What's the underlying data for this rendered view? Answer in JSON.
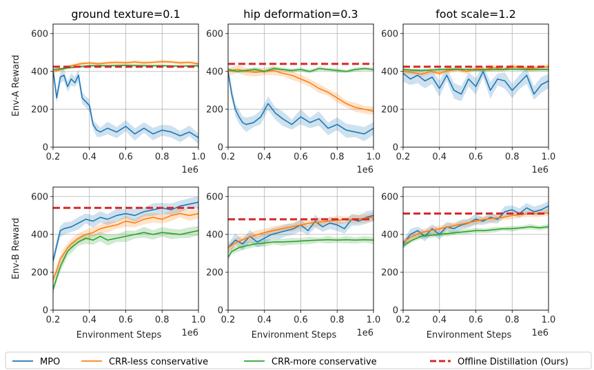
{
  "colors": {
    "mpo": "#1f77b4",
    "crr_less": "#ff7f0e",
    "crr_more": "#2ca02c",
    "distill": "#d62728"
  },
  "legend": {
    "items": [
      {
        "key": "mpo",
        "label": "MPO",
        "style": "solid"
      },
      {
        "key": "crr_less",
        "label": "CRR-less conservative",
        "style": "solid"
      },
      {
        "key": "crr_more",
        "label": "CRR-more conservative",
        "style": "solid"
      },
      {
        "key": "distill",
        "label": "Offline Distillation (Ours)",
        "style": "dashed"
      }
    ]
  },
  "chart_data": [
    {
      "type": "line",
      "title": "ground texture=0.1",
      "ylabel": "Env-A Reward",
      "xlabel": "",
      "x_offset_label": "1e6",
      "xlim": [
        0.2,
        1.0
      ],
      "ylim": [
        0,
        650
      ],
      "xticks": [
        "0.2",
        "0.4",
        "0.6",
        "0.8",
        "1.0"
      ],
      "yticks": [
        0,
        200,
        400,
        600
      ],
      "grid": true,
      "series": [
        {
          "name": "MPO",
          "color_key": "mpo",
          "band": 35,
          "x": [
            0.2,
            0.22,
            0.24,
            0.26,
            0.28,
            0.3,
            0.32,
            0.34,
            0.36,
            0.38,
            0.4,
            0.42,
            0.44,
            0.46,
            0.5,
            0.55,
            0.6,
            0.65,
            0.7,
            0.75,
            0.8,
            0.85,
            0.9,
            0.95,
            1.0
          ],
          "y": [
            410,
            260,
            370,
            380,
            320,
            360,
            340,
            380,
            260,
            240,
            220,
            120,
            90,
            80,
            100,
            80,
            110,
            70,
            100,
            70,
            90,
            80,
            60,
            80,
            50
          ]
        },
        {
          "name": "CRR-less conservative",
          "color_key": "crr_less",
          "band": 10,
          "x": [
            0.2,
            0.25,
            0.3,
            0.35,
            0.4,
            0.45,
            0.5,
            0.55,
            0.6,
            0.65,
            0.7,
            0.75,
            0.8,
            0.85,
            0.9,
            0.95,
            1.0
          ],
          "y": [
            400,
            410,
            430,
            440,
            445,
            440,
            445,
            448,
            445,
            450,
            445,
            448,
            452,
            450,
            445,
            448,
            440
          ]
        },
        {
          "name": "CRR-more conservative",
          "color_key": "crr_more",
          "band": 8,
          "x": [
            0.2,
            0.3,
            0.4,
            0.5,
            0.6,
            0.7,
            0.8,
            0.9,
            1.0
          ],
          "y": [
            410,
            420,
            430,
            430,
            432,
            430,
            430,
            428,
            430
          ]
        },
        {
          "name": "Offline Distillation (Ours)",
          "color_key": "distill",
          "style": "dashed",
          "x": [
            0.2,
            1.0
          ],
          "y": [
            425,
            425
          ]
        }
      ]
    },
    {
      "type": "line",
      "title": "hip deformation=0.3",
      "ylabel": "",
      "xlabel": "",
      "x_offset_label": "1e6",
      "xlim": [
        0.2,
        1.0
      ],
      "ylim": [
        0,
        650
      ],
      "xticks": [
        "0.2",
        "0.4",
        "0.6",
        "0.8",
        "1.0"
      ],
      "yticks": [
        0,
        200,
        400,
        600
      ],
      "grid": true,
      "series": [
        {
          "name": "MPO",
          "color_key": "mpo",
          "band": 40,
          "x": [
            0.2,
            0.22,
            0.24,
            0.26,
            0.28,
            0.3,
            0.34,
            0.38,
            0.42,
            0.46,
            0.5,
            0.55,
            0.6,
            0.65,
            0.7,
            0.75,
            0.8,
            0.85,
            0.9,
            0.95,
            1.0
          ],
          "y": [
            400,
            280,
            200,
            160,
            130,
            120,
            130,
            160,
            230,
            180,
            150,
            120,
            160,
            130,
            150,
            100,
            120,
            90,
            80,
            70,
            100
          ]
        },
        {
          "name": "CRR-less conservative",
          "color_key": "crr_less",
          "band": 25,
          "x": [
            0.2,
            0.25,
            0.3,
            0.35,
            0.4,
            0.45,
            0.5,
            0.55,
            0.6,
            0.65,
            0.7,
            0.75,
            0.8,
            0.85,
            0.9,
            0.95,
            1.0
          ],
          "y": [
            400,
            410,
            400,
            395,
            400,
            405,
            390,
            380,
            360,
            340,
            310,
            290,
            260,
            230,
            210,
            200,
            190
          ]
        },
        {
          "name": "CRR-more conservative",
          "color_key": "crr_more",
          "band": 12,
          "x": [
            0.2,
            0.25,
            0.3,
            0.35,
            0.4,
            0.45,
            0.5,
            0.55,
            0.6,
            0.65,
            0.7,
            0.75,
            0.8,
            0.85,
            0.9,
            0.95,
            1.0
          ],
          "y": [
            410,
            400,
            405,
            410,
            400,
            415,
            410,
            405,
            410,
            400,
            415,
            410,
            405,
            400,
            410,
            415,
            410
          ]
        },
        {
          "name": "Offline Distillation (Ours)",
          "color_key": "distill",
          "style": "dashed",
          "x": [
            0.2,
            1.0
          ],
          "y": [
            440,
            440
          ]
        }
      ]
    },
    {
      "type": "line",
      "title": "foot scale=1.2",
      "ylabel": "",
      "xlabel": "",
      "x_offset_label": "1e6",
      "xlim": [
        0.2,
        1.0
      ],
      "ylim": [
        0,
        650
      ],
      "xticks": [
        "0.2",
        "0.4",
        "0.6",
        "0.8",
        "1.0"
      ],
      "yticks": [
        0,
        200,
        400,
        600
      ],
      "grid": true,
      "series": [
        {
          "name": "MPO",
          "color_key": "mpo",
          "band": 45,
          "x": [
            0.2,
            0.24,
            0.28,
            0.32,
            0.36,
            0.4,
            0.44,
            0.48,
            0.52,
            0.56,
            0.6,
            0.64,
            0.68,
            0.72,
            0.76,
            0.8,
            0.84,
            0.88,
            0.92,
            0.96,
            1.0
          ],
          "y": [
            390,
            360,
            380,
            350,
            370,
            310,
            380,
            300,
            280,
            360,
            320,
            400,
            300,
            360,
            350,
            300,
            340,
            380,
            280,
            330,
            350
          ]
        },
        {
          "name": "CRR-less conservative",
          "color_key": "crr_less",
          "band": 15,
          "x": [
            0.2,
            0.25,
            0.3,
            0.35,
            0.4,
            0.45,
            0.5,
            0.55,
            0.6,
            0.65,
            0.7,
            0.75,
            0.8,
            0.85,
            0.9,
            0.95,
            1.0
          ],
          "y": [
            400,
            395,
            385,
            400,
            390,
            405,
            410,
            400,
            415,
            410,
            420,
            410,
            425,
            420,
            415,
            420,
            425
          ]
        },
        {
          "name": "CRR-more conservative",
          "color_key": "crr_more",
          "band": 10,
          "x": [
            0.2,
            0.3,
            0.4,
            0.5,
            0.6,
            0.7,
            0.8,
            0.9,
            1.0
          ],
          "y": [
            410,
            405,
            410,
            412,
            408,
            410,
            412,
            410,
            410
          ]
        },
        {
          "name": "Offline Distillation (Ours)",
          "color_key": "distill",
          "style": "dashed",
          "x": [
            0.2,
            1.0
          ],
          "y": [
            425,
            425
          ]
        }
      ]
    },
    {
      "type": "line",
      "title": "",
      "ylabel": "Env-B Reward",
      "xlabel": "Environment Steps",
      "x_offset_label": "1e6",
      "xlim": [
        0.2,
        1.0
      ],
      "ylim": [
        0,
        650
      ],
      "xticks": [
        "0.2",
        "0.4",
        "0.6",
        "0.8",
        "1.0"
      ],
      "yticks": [
        0,
        200,
        400,
        600
      ],
      "grid": true,
      "series": [
        {
          "name": "MPO",
          "color_key": "mpo",
          "band": 35,
          "x": [
            0.2,
            0.22,
            0.24,
            0.26,
            0.3,
            0.34,
            0.38,
            0.42,
            0.46,
            0.5,
            0.55,
            0.6,
            0.65,
            0.7,
            0.75,
            0.8,
            0.85,
            0.9,
            0.95,
            1.0
          ],
          "y": [
            260,
            340,
            420,
            430,
            440,
            460,
            480,
            470,
            490,
            480,
            500,
            510,
            500,
            520,
            530,
            540,
            530,
            550,
            560,
            570
          ]
        },
        {
          "name": "CRR-less conservative",
          "color_key": "crr_less",
          "band": 30,
          "x": [
            0.2,
            0.22,
            0.24,
            0.26,
            0.28,
            0.3,
            0.34,
            0.38,
            0.42,
            0.46,
            0.5,
            0.55,
            0.6,
            0.65,
            0.7,
            0.75,
            0.8,
            0.85,
            0.9,
            0.95,
            1.0
          ],
          "y": [
            160,
            210,
            270,
            300,
            330,
            350,
            380,
            400,
            410,
            430,
            440,
            450,
            470,
            460,
            480,
            490,
            480,
            500,
            510,
            500,
            510
          ]
        },
        {
          "name": "CRR-more conservative",
          "color_key": "crr_more",
          "band": 30,
          "x": [
            0.2,
            0.22,
            0.24,
            0.26,
            0.28,
            0.3,
            0.34,
            0.38,
            0.42,
            0.46,
            0.5,
            0.55,
            0.6,
            0.65,
            0.7,
            0.75,
            0.8,
            0.85,
            0.9,
            0.95,
            1.0
          ],
          "y": [
            110,
            170,
            230,
            270,
            310,
            330,
            360,
            380,
            370,
            390,
            370,
            380,
            390,
            400,
            410,
            400,
            410,
            405,
            400,
            410,
            420
          ]
        },
        {
          "name": "Offline Distillation (Ours)",
          "color_key": "distill",
          "style": "dashed",
          "x": [
            0.2,
            1.0
          ],
          "y": [
            540,
            540
          ]
        }
      ]
    },
    {
      "type": "line",
      "title": "",
      "ylabel": "",
      "xlabel": "Environment Steps",
      "x_offset_label": "1e6",
      "xlim": [
        0.2,
        1.0
      ],
      "ylim": [
        0,
        650
      ],
      "xticks": [
        "0.2",
        "0.4",
        "0.6",
        "0.8",
        "1.0"
      ],
      "yticks": [
        0,
        200,
        400,
        600
      ],
      "grid": true,
      "series": [
        {
          "name": "MPO",
          "color_key": "mpo",
          "band": 35,
          "x": [
            0.2,
            0.24,
            0.28,
            0.32,
            0.36,
            0.4,
            0.44,
            0.48,
            0.52,
            0.56,
            0.6,
            0.64,
            0.68,
            0.72,
            0.76,
            0.8,
            0.84,
            0.88,
            0.92,
            0.96,
            1.0
          ],
          "y": [
            330,
            370,
            350,
            390,
            360,
            380,
            400,
            410,
            420,
            430,
            450,
            420,
            470,
            440,
            460,
            450,
            430,
            480,
            470,
            490,
            500
          ]
        },
        {
          "name": "CRR-less conservative",
          "color_key": "crr_less",
          "band": 25,
          "x": [
            0.2,
            0.25,
            0.3,
            0.35,
            0.4,
            0.45,
            0.5,
            0.55,
            0.6,
            0.65,
            0.7,
            0.75,
            0.8,
            0.85,
            0.9,
            0.95,
            1.0
          ],
          "y": [
            330,
            360,
            380,
            395,
            410,
            420,
            430,
            440,
            450,
            460,
            465,
            470,
            475,
            478,
            480,
            485,
            490
          ]
        },
        {
          "name": "CRR-more conservative",
          "color_key": "crr_more",
          "band": 20,
          "x": [
            0.2,
            0.22,
            0.26,
            0.3,
            0.35,
            0.4,
            0.45,
            0.5,
            0.55,
            0.6,
            0.65,
            0.7,
            0.75,
            0.8,
            0.85,
            0.9,
            0.95,
            1.0
          ],
          "y": [
            280,
            310,
            330,
            340,
            350,
            355,
            360,
            360,
            362,
            365,
            368,
            370,
            372,
            370,
            372,
            370,
            372,
            370
          ]
        },
        {
          "name": "Offline Distillation (Ours)",
          "color_key": "distill",
          "style": "dashed",
          "x": [
            0.2,
            1.0
          ],
          "y": [
            480,
            480
          ]
        }
      ]
    },
    {
      "type": "line",
      "title": "",
      "ylabel": "",
      "xlabel": "Environment Steps",
      "x_offset_label": "1e6",
      "xlim": [
        0.2,
        1.0
      ],
      "ylim": [
        0,
        650
      ],
      "xticks": [
        "0.2",
        "0.4",
        "0.6",
        "0.8",
        "1.0"
      ],
      "yticks": [
        0,
        200,
        400,
        600
      ],
      "grid": true,
      "series": [
        {
          "name": "MPO",
          "color_key": "mpo",
          "band": 30,
          "x": [
            0.2,
            0.24,
            0.28,
            0.32,
            0.36,
            0.4,
            0.44,
            0.48,
            0.52,
            0.56,
            0.6,
            0.64,
            0.68,
            0.72,
            0.76,
            0.8,
            0.84,
            0.88,
            0.92,
            0.96,
            1.0
          ],
          "y": [
            350,
            400,
            420,
            390,
            430,
            400,
            440,
            430,
            450,
            460,
            480,
            470,
            490,
            480,
            520,
            530,
            510,
            540,
            520,
            530,
            550
          ]
        },
        {
          "name": "CRR-less conservative",
          "color_key": "crr_less",
          "band": 20,
          "x": [
            0.2,
            0.25,
            0.3,
            0.35,
            0.4,
            0.45,
            0.5,
            0.55,
            0.6,
            0.65,
            0.7,
            0.75,
            0.8,
            0.85,
            0.9,
            0.95,
            1.0
          ],
          "y": [
            360,
            390,
            410,
            420,
            430,
            440,
            450,
            460,
            470,
            480,
            485,
            490,
            500,
            505,
            510,
            510,
            515
          ]
        },
        {
          "name": "CRR-more conservative",
          "color_key": "crr_more",
          "band": 15,
          "x": [
            0.2,
            0.25,
            0.3,
            0.35,
            0.4,
            0.45,
            0.5,
            0.55,
            0.6,
            0.65,
            0.7,
            0.75,
            0.8,
            0.85,
            0.9,
            0.95,
            1.0
          ],
          "y": [
            340,
            370,
            390,
            395,
            400,
            405,
            410,
            415,
            420,
            420,
            425,
            430,
            430,
            435,
            440,
            435,
            440
          ]
        },
        {
          "name": "Offline Distillation (Ours)",
          "color_key": "distill",
          "style": "dashed",
          "x": [
            0.2,
            1.0
          ],
          "y": [
            510,
            510
          ]
        }
      ]
    }
  ]
}
